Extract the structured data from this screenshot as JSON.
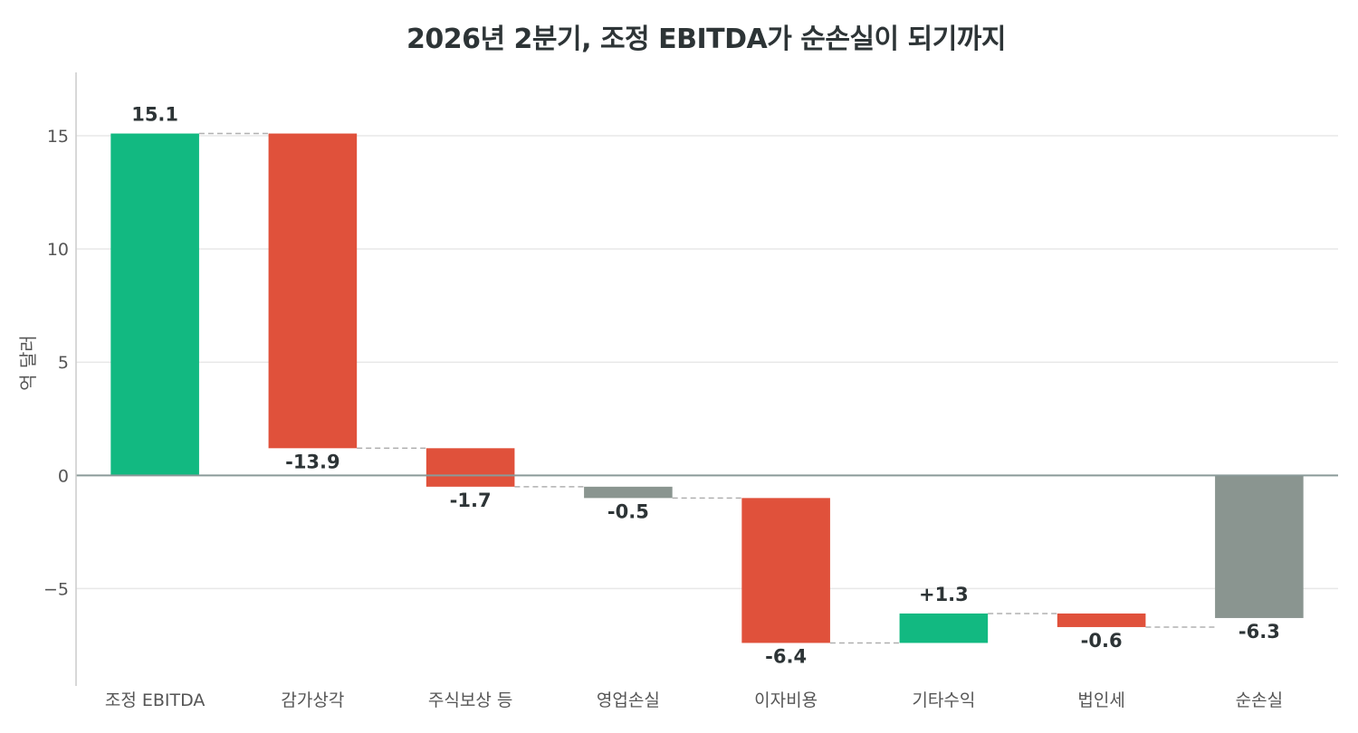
{
  "chart_data": {
    "type": "bar",
    "subtype": "waterfall",
    "title": "2026년 2분기, 조정 EBITDA가 순손실이 되기까지",
    "xlabel": "",
    "ylabel": "억 달러",
    "ylim": [
      -9.3,
      17.8
    ],
    "yticks": [
      -5,
      0,
      5,
      10,
      15
    ],
    "ytick_labels": [
      "−5",
      "0",
      "5",
      "10",
      "15"
    ],
    "grid": true,
    "categories": [
      "조정 EBITDA",
      "감가상각",
      "주식보상 등",
      "영업손실",
      "이자비용",
      "기타수익",
      "법인세",
      "순손실"
    ],
    "values": [
      15.1,
      -13.9,
      -1.7,
      -0.5,
      -6.4,
      1.3,
      -0.6,
      -6.3
    ],
    "kinds": [
      "total",
      "delta",
      "delta",
      "subtotal",
      "delta",
      "delta",
      "delta",
      "total"
    ],
    "data_labels": [
      "15.1",
      "-13.9",
      "-1.7",
      "-0.5",
      "-6.4",
      "+1.3",
      "-0.6",
      "-6.3"
    ],
    "colors": {
      "positive": "#12b981",
      "negative": "#e0513b",
      "subtotal": "#8a9590",
      "grid": "#e8e8e8",
      "zero_line": "#8a9a99",
      "connector": "#b0b0b0",
      "axis": "#cccccc"
    }
  }
}
